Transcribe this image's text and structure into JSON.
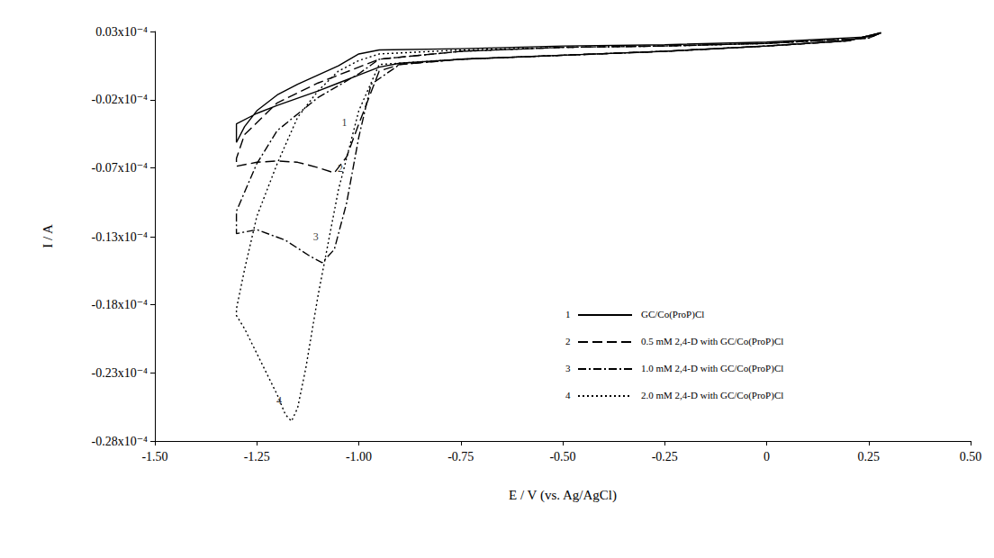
{
  "chart_data": {
    "type": "line",
    "x_label": "E / V (vs. Ag/AgCl)",
    "y_label": "I / A",
    "xlim": [
      -1.5,
      0.5
    ],
    "xticks": [
      {
        "value": -1.5,
        "label": "-1.50"
      },
      -1.25,
      {
        "value": -1.0,
        "label": "-1.00"
      },
      -0.75,
      {
        "value": -0.5,
        "label": "-0.50"
      },
      -0.25,
      0,
      0.25,
      {
        "value": 0.5,
        "label": "0.50"
      }
    ],
    "ylim": [
      -2.8e-05,
      3e-06
    ],
    "yticks": [
      {
        "value": 3e-06,
        "label": "0.03x10⁻⁴"
      },
      {
        "value": -2.1667e-06,
        "label": "-0.02x10⁻⁴"
      },
      {
        "value": -7.3333e-06,
        "label": "-0.07x10⁻⁴"
      },
      {
        "value": -1.255e-05,
        "label": "-0.13x10⁻⁴"
      },
      {
        "value": -1.76667e-05,
        "label": "-0.18x10⁻⁴"
      },
      {
        "value": -2.28333e-05,
        "label": "-0.23x10⁻⁴"
      },
      {
        "value": -2.8e-05,
        "label": "-0.28x10⁻⁴"
      }
    ],
    "grid": false,
    "legend": "lower right",
    "series": [
      {
        "name": "GC/Co(ProP)Cl",
        "label": "1",
        "color": "#000000",
        "line_style": "solid",
        "x": [
          0.28,
          0.2,
          0,
          -0.25,
          -0.5,
          -0.75,
          -0.9,
          -0.95,
          -1.0,
          -1.05,
          -1.1,
          -1.2,
          -1.25,
          -1.3,
          -1.3,
          -1.28,
          -1.25,
          -1.2,
          -1.15,
          -1.1,
          -1.05,
          -1.0,
          -0.95,
          -0.75,
          -0.5,
          -0.25,
          0,
          0.25,
          0.28
        ],
        "y": [
          2.9e-06,
          2.3e-06,
          1.9e-06,
          1.5e-06,
          1.2e-06,
          9e-07,
          6e-07,
          3e-07,
          -3e-07,
          -9e-07,
          -1.5e-06,
          -2.6e-06,
          -3.2e-06,
          -4e-06,
          -5.4e-06,
          -4.2e-06,
          -3e-06,
          -1.8e-06,
          -1e-06,
          -3e-07,
          4e-07,
          1.3e-06,
          1.6e-06,
          1.7e-06,
          1.9e-06,
          2e-06,
          2.2e-06,
          2.6e-06,
          2.9e-06
        ]
      },
      {
        "name": "0.5 mM 2,4-D with GC/Co(ProP)Cl",
        "label": "2",
        "color": "#000000",
        "line_style": "dashed",
        "x": [
          0.28,
          0.2,
          0,
          -0.25,
          -0.5,
          -0.75,
          -0.9,
          -0.95,
          -1.0,
          -1.03,
          -1.06,
          -1.1,
          -1.15,
          -1.2,
          -1.25,
          -1.3,
          -1.3,
          -1.28,
          -1.2,
          -1.1,
          -1.0,
          -0.95,
          -0.75,
          -0.5,
          -0.25,
          0,
          0.25,
          0.28
        ],
        "y": [
          2.9e-06,
          2.3e-06,
          1.9e-06,
          1.5e-06,
          1.2e-06,
          9e-07,
          5e-07,
          0,
          -4e-06,
          -6.5e-06,
          -7.7e-06,
          -7.3e-06,
          -6.9e-06,
          -6.8e-06,
          -6.9e-06,
          -7.2e-06,
          -6.6e-06,
          -4.8e-06,
          -2.4e-06,
          -9e-07,
          3e-07,
          9e-07,
          1.5e-06,
          1.8e-06,
          1.9e-06,
          2.1e-06,
          2.5e-06,
          2.9e-06
        ]
      },
      {
        "name": "1.0 mM 2,4-D with GC/Co(ProP)Cl",
        "label": "3",
        "color": "#000000",
        "line_style": "dashdot",
        "x": [
          0.28,
          0.2,
          0,
          -0.25,
          -0.5,
          -0.75,
          -0.9,
          -0.97,
          -1.0,
          -1.03,
          -1.06,
          -1.09,
          -1.12,
          -1.18,
          -1.25,
          -1.3,
          -1.3,
          -1.25,
          -1.2,
          -1.1,
          -1.0,
          -0.95,
          -0.75,
          -0.5,
          -0.25,
          0,
          0.25,
          0.28
        ],
        "y": [
          2.9e-06,
          2.3e-06,
          1.9e-06,
          1.5e-06,
          1.2e-06,
          9e-07,
          5e-07,
          -1e-06,
          -5e-06,
          -1e-05,
          -1.35e-05,
          -1.45e-05,
          -1.4e-05,
          -1.28e-05,
          -1.2e-05,
          -1.23e-05,
          -1.06e-05,
          -7e-06,
          -4.5e-06,
          -2e-06,
          -2e-07,
          9e-07,
          1.5e-06,
          1.8e-06,
          1.9e-06,
          2.1e-06,
          2.5e-06,
          2.9e-06
        ]
      },
      {
        "name": "2.0 mM 2,4-D with GC/Co(ProP)Cl",
        "label": "4",
        "color": "#000000",
        "line_style": "dotted",
        "x": [
          0.28,
          0.2,
          0,
          -0.25,
          -0.5,
          -0.75,
          -0.9,
          -0.95,
          -1.0,
          -1.05,
          -1.1,
          -1.13,
          -1.15,
          -1.165,
          -1.18,
          -1.2,
          -1.24,
          -1.28,
          -1.3,
          -1.3,
          -1.28,
          -1.25,
          -1.2,
          -1.15,
          -1.1,
          -1.05,
          -1.0,
          -0.95,
          -0.75,
          -0.5,
          -0.25,
          0,
          0.25,
          0.28
        ],
        "y": [
          2.9e-06,
          2.3e-06,
          1.9e-06,
          1.5e-06,
          1.2e-06,
          9e-07,
          6e-07,
          5e-07,
          -3e-06,
          -9e-06,
          -1.7e-05,
          -2.25e-05,
          -2.55e-05,
          -2.65e-05,
          -2.6e-05,
          -2.45e-05,
          -2.2e-05,
          -1.95e-05,
          -1.85e-05,
          -1.8e-05,
          -1.5e-05,
          -1.1e-05,
          -7e-06,
          -3.5e-06,
          -1.5e-06,
          0,
          8e-07,
          1.3e-06,
          1.6e-06,
          1.8e-06,
          1.9e-06,
          2.1e-06,
          2.5e-06,
          2.9e-06
        ]
      }
    ],
    "annotations": [
      {
        "text": "1",
        "x": -1.02,
        "y": -3.9e-06
      },
      {
        "text": "2",
        "x": -1.03,
        "y": -7.35e-06
      },
      {
        "text": "3",
        "x": -1.09,
        "y": -1.25e-05
      },
      {
        "text": "4",
        "x": -1.18,
        "y": -2.49e-05
      }
    ]
  }
}
